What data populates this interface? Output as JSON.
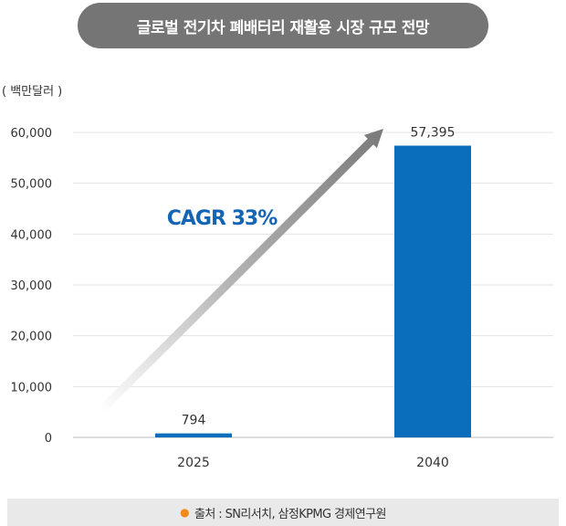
{
  "header": {
    "title": "글로벌 전기차 폐배터리 재활용 시장 규모 전망"
  },
  "chart_data": {
    "type": "bar",
    "unit_label": "( 백만달러 )",
    "categories": [
      "2025",
      "2040"
    ],
    "values": [
      794,
      57395
    ],
    "value_labels": [
      "794",
      "57,395"
    ],
    "ylim": [
      0,
      60000
    ],
    "yticks": [
      0,
      10000,
      20000,
      30000,
      40000,
      50000,
      60000
    ],
    "ytick_labels": [
      "0",
      "10,000",
      "20,000",
      "30,000",
      "40,000",
      "50,000",
      "60,000"
    ],
    "grid": true,
    "bar_color": "#0a6ebd",
    "annotation": {
      "text": "CAGR 33%",
      "color": "#1565b5"
    }
  },
  "footer": {
    "source": "출처 : SN리서치, 삼정KPMG 경제연구원"
  }
}
